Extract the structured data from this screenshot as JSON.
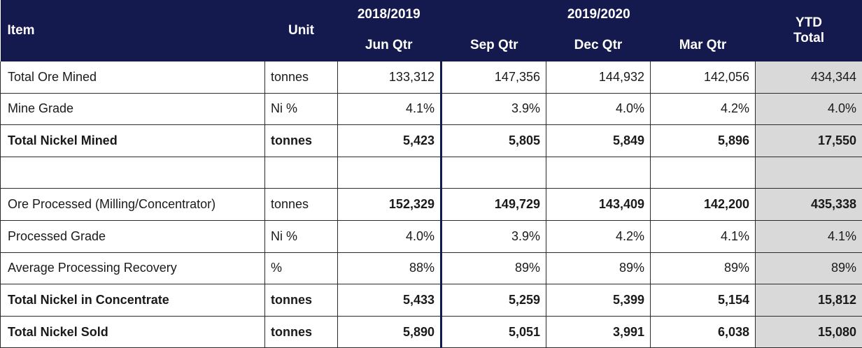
{
  "header": {
    "item": "Item",
    "unit": "Unit",
    "fy1": "2018/2019",
    "fy2": "2019/2020",
    "ytd_line1": "YTD",
    "ytd_line2": "Total",
    "quarters": [
      "Jun Qtr",
      "Sep Qtr",
      "Dec Qtr",
      "Mar Qtr"
    ]
  },
  "rows": [
    {
      "item": "Total Ore Mined",
      "unit": "tonnes",
      "values": [
        "133,312",
        "147,356",
        "144,932",
        "142,056",
        "434,344"
      ],
      "bold": false
    },
    {
      "item": "Mine Grade",
      "unit": "Ni %",
      "values": [
        "4.1%",
        "3.9%",
        "4.0%",
        "4.2%",
        "4.0%"
      ],
      "bold": false
    },
    {
      "item": "Total Nickel Mined",
      "unit": "tonnes",
      "values": [
        "5,423",
        "5,805",
        "5,849",
        "5,896",
        "17,550"
      ],
      "bold": true
    },
    {
      "item": "",
      "unit": "",
      "values": [
        "",
        "",
        "",
        "",
        ""
      ],
      "bold": false
    },
    {
      "item": "Ore Processed (Milling/Concentrator)",
      "unit": "tonnes",
      "values": [
        "152,329",
        "149,729",
        "143,409",
        "142,200",
        "435,338"
      ],
      "bold": false,
      "bold_values": true
    },
    {
      "item": "Processed Grade",
      "unit": "Ni %",
      "values": [
        "4.0%",
        "3.9%",
        "4.2%",
        "4.1%",
        "4.1%"
      ],
      "bold": false
    },
    {
      "item": "Average Processing Recovery",
      "unit": "%",
      "values": [
        "88%",
        "89%",
        "89%",
        "89%",
        "89%"
      ],
      "bold": false
    },
    {
      "item": "Total Nickel in Concentrate",
      "unit": "tonnes",
      "values": [
        "5,433",
        "5,259",
        "5,399",
        "5,154",
        "15,812"
      ],
      "bold": true
    },
    {
      "item": "Total Nickel Sold",
      "unit": "tonnes",
      "values": [
        "5,890",
        "5,051",
        "3,991",
        "6,038",
        "15,080"
      ],
      "bold": true
    }
  ],
  "colors": {
    "header_bg": "#141a4e",
    "ytd_bg": "#d9d9d9"
  }
}
